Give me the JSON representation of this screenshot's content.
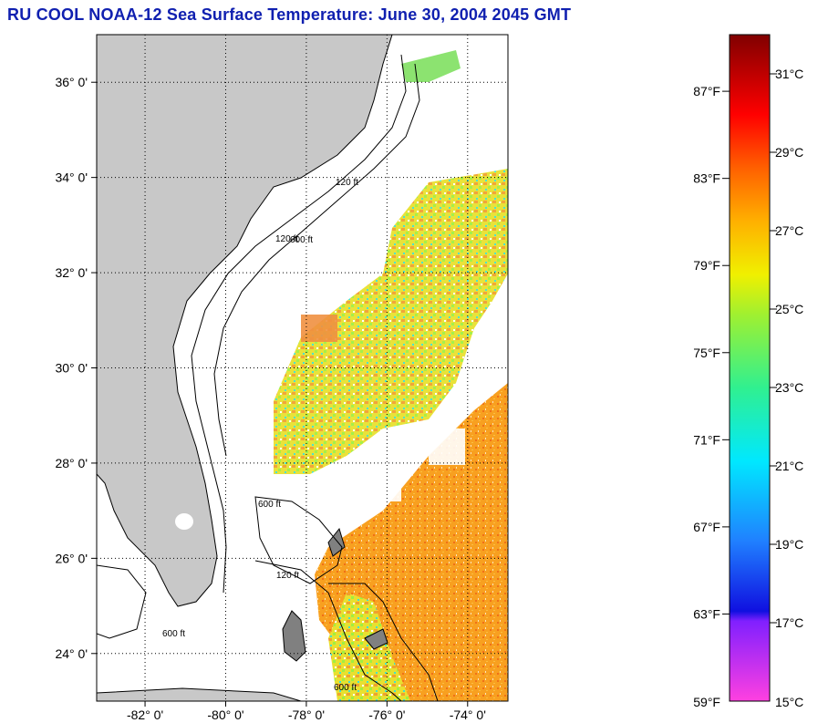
{
  "title": "RU COOL  NOAA-12  Sea Surface Temperature:  June 30, 2004 2045 GMT",
  "map": {
    "lat_ticks": [
      {
        "value": 36,
        "label": "36° 0'"
      },
      {
        "value": 34,
        "label": "34° 0'"
      },
      {
        "value": 32,
        "label": "32° 0'"
      },
      {
        "value": 30,
        "label": "30° 0'"
      },
      {
        "value": 28,
        "label": "28° 0'"
      },
      {
        "value": 26,
        "label": "26° 0'"
      },
      {
        "value": 24,
        "label": "24° 0'"
      }
    ],
    "lon_ticks": [
      {
        "value": -82,
        "label": "-82° 0'"
      },
      {
        "value": -80,
        "label": "-80° 0'"
      },
      {
        "value": -78,
        "label": "-78° 0'"
      },
      {
        "value": -76,
        "label": "-76° 0'"
      },
      {
        "value": -74,
        "label": "-74° 0'"
      }
    ],
    "lat_range": [
      23,
      37
    ],
    "lon_range": [
      -83.2,
      -73.0
    ],
    "grid": "dotted",
    "land_color": "#c8c8c8",
    "contour_labels": [
      "120 ft",
      "600 ft"
    ]
  },
  "colorbar": {
    "fahrenheit_labels": [
      "87°F",
      "83°F",
      "79°F",
      "75°F",
      "71°F",
      "67°F",
      "63°F",
      "59°F"
    ],
    "celsius_labels": [
      "31°C",
      "29°C",
      "27°C",
      "25°C",
      "23°C",
      "21°C",
      "19°C",
      "17°C",
      "15°C"
    ],
    "range_c": [
      15,
      32
    ]
  }
}
